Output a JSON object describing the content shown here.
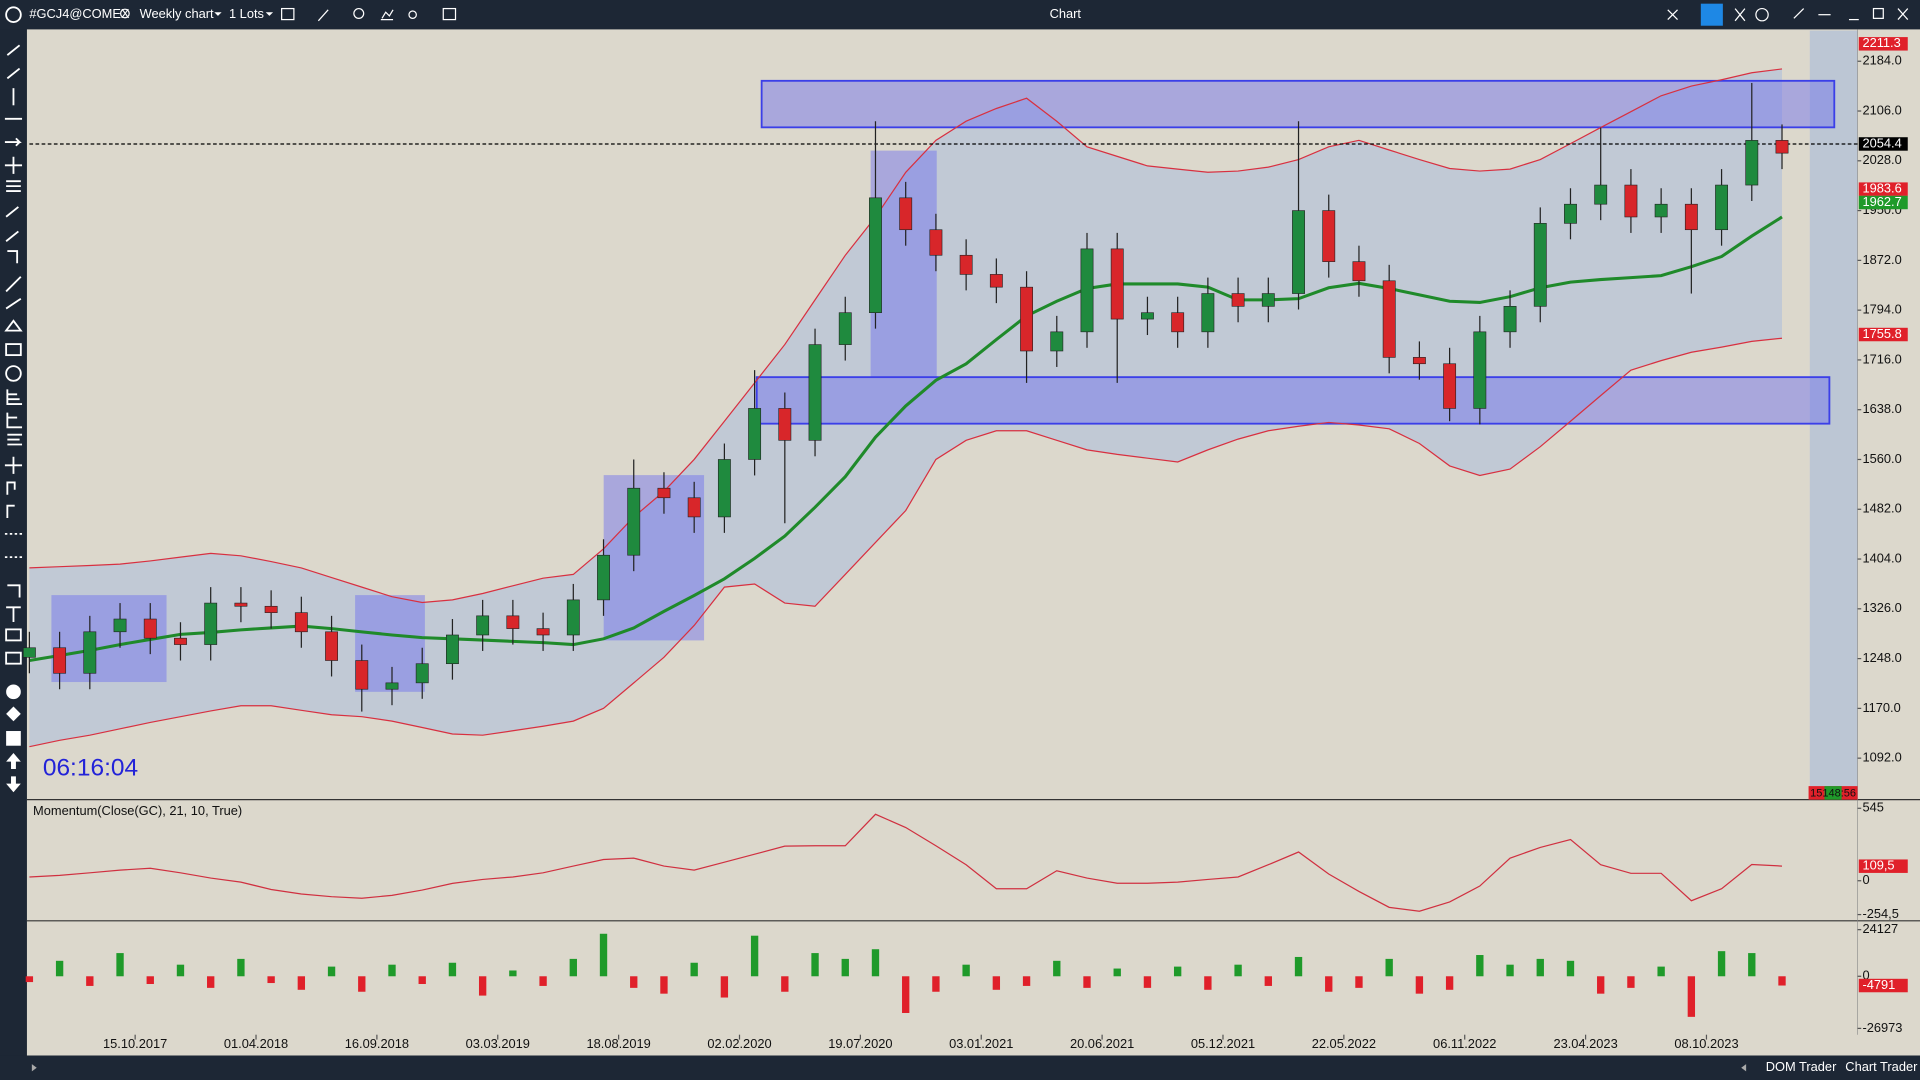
{
  "toolbar": {
    "symbol": "#GCJ4@COMEX",
    "timeframe": "Weekly chart",
    "lots": "1 Lots",
    "window_title": "Chart"
  },
  "footer": {
    "tabs": [
      "DOM Trader",
      "Chart Trader"
    ]
  },
  "chart_data": [
    {
      "type": "candlestick",
      "x": [
        0,
        6,
        12,
        18,
        24,
        30,
        36,
        42,
        48,
        54,
        60,
        66,
        72,
        78,
        84,
        90,
        96,
        102,
        108,
        114,
        120,
        126,
        132,
        138,
        144,
        150,
        156,
        162,
        168,
        174,
        180,
        186,
        192,
        198,
        204,
        210,
        216,
        222,
        228,
        234,
        240,
        246,
        252,
        258,
        264,
        270,
        276,
        282,
        288,
        294,
        300,
        306,
        312,
        318,
        324,
        330,
        336,
        342,
        348
      ],
      "open": [
        1250,
        1265,
        1225,
        1290,
        1310,
        1280,
        1270,
        1335,
        1330,
        1320,
        1290,
        1245,
        1200,
        1210,
        1240,
        1285,
        1315,
        1295,
        1285,
        1340,
        1410,
        1515,
        1500,
        1470,
        1560,
        1640,
        1590,
        1740,
        1790,
        1970,
        1920,
        1880,
        1850,
        1830,
        1730,
        1760,
        1890,
        1780,
        1790,
        1760,
        1820,
        1800,
        1820,
        1950,
        1870,
        1840,
        1720,
        1710,
        1640,
        1760,
        1800,
        1930,
        1960,
        1990,
        1940,
        1960,
        1920,
        1990,
        2060
      ],
      "high": [
        1290,
        1290,
        1315,
        1335,
        1335,
        1305,
        1360,
        1360,
        1355,
        1345,
        1315,
        1270,
        1235,
        1265,
        1310,
        1340,
        1340,
        1320,
        1365,
        1435,
        1560,
        1540,
        1525,
        1585,
        1700,
        1665,
        1765,
        1815,
        2090,
        1995,
        1945,
        1905,
        1875,
        1855,
        1785,
        1915,
        1915,
        1815,
        1815,
        1845,
        1845,
        1845,
        2090,
        1975,
        1895,
        1865,
        1745,
        1735,
        1785,
        1825,
        1955,
        1985,
        2080,
        2015,
        1985,
        1985,
        2015,
        2150,
        2085
      ],
      "low": [
        1225,
        1200,
        1200,
        1265,
        1255,
        1245,
        1245,
        1305,
        1295,
        1265,
        1220,
        1165,
        1175,
        1185,
        1215,
        1260,
        1270,
        1260,
        1260,
        1315,
        1385,
        1475,
        1445,
        1445,
        1535,
        1460,
        1565,
        1715,
        1765,
        1895,
        1855,
        1825,
        1805,
        1680,
        1705,
        1735,
        1680,
        1755,
        1735,
        1735,
        1775,
        1775,
        1795,
        1845,
        1815,
        1695,
        1685,
        1620,
        1615,
        1735,
        1775,
        1905,
        1935,
        1915,
        1915,
        1820,
        1895,
        1965,
        2015
      ],
      "close": [
        1265,
        1225,
        1290,
        1310,
        1280,
        1270,
        1335,
        1330,
        1320,
        1290,
        1245,
        1200,
        1210,
        1240,
        1285,
        1315,
        1295,
        1285,
        1340,
        1410,
        1515,
        1500,
        1470,
        1560,
        1640,
        1590,
        1740,
        1790,
        1970,
        1920,
        1880,
        1850,
        1830,
        1730,
        1760,
        1890,
        1780,
        1790,
        1760,
        1820,
        1800,
        1820,
        1950,
        1870,
        1840,
        1720,
        1710,
        1640,
        1760,
        1800,
        1930,
        1960,
        1990,
        1940,
        1960,
        1920,
        1990,
        2060,
        2040
      ],
      "up_color": "#1f8a3e",
      "down_color": "#d8262a",
      "series": [
        {
          "color": "#1f8a2a",
          "values": [
            1245,
            1253,
            1261,
            1270,
            1278,
            1286,
            1289,
            1293,
            1296,
            1299,
            1295,
            1290,
            1285,
            1281,
            1279,
            1277,
            1275,
            1273,
            1270,
            1279,
            1296,
            1322,
            1347,
            1373,
            1405,
            1440,
            1485,
            1533,
            1595,
            1644,
            1684,
            1710,
            1748,
            1785,
            1808,
            1828,
            1835,
            1835,
            1835,
            1830,
            1810,
            1810,
            1812,
            1829,
            1836,
            1828,
            1818,
            1808,
            1806,
            1815,
            1829,
            1838,
            1842,
            1845,
            1848,
            1862,
            1878,
            1910,
            1940
          ]
        },
        {
          "color": "#d83040",
          "values": [
            1390,
            1392,
            1394,
            1396,
            1401,
            1407,
            1413,
            1409,
            1400,
            1390,
            1375,
            1360,
            1345,
            1336,
            1340,
            1350,
            1362,
            1374,
            1380,
            1420,
            1470,
            1510,
            1560,
            1620,
            1680,
            1740,
            1810,
            1880,
            1940,
            2010,
            2060,
            2090,
            2110,
            2126,
            2090,
            2050,
            2035,
            2020,
            2015,
            2010,
            2012,
            2018,
            2030,
            2050,
            2060,
            2045,
            2030,
            2016,
            2012,
            2015,
            2030,
            2055,
            2080,
            2105,
            2130,
            2145,
            2155,
            2166,
            2172
          ]
        },
        {
          "color": "#d83040",
          "values": [
            1110,
            1120,
            1128,
            1138,
            1148,
            1157,
            1166,
            1174,
            1174,
            1167,
            1160,
            1157,
            1150,
            1140,
            1130,
            1128,
            1135,
            1142,
            1150,
            1170,
            1210,
            1250,
            1300,
            1360,
            1365,
            1335,
            1330,
            1380,
            1430,
            1480,
            1560,
            1590,
            1605,
            1605,
            1590,
            1575,
            1568,
            1562,
            1556,
            1575,
            1592,
            1605,
            1612,
            1618,
            1614,
            1608,
            1585,
            1550,
            1535,
            1545,
            1580,
            1620,
            1660,
            1700,
            1715,
            1728,
            1736,
            1745,
            1750
          ]
        }
      ],
      "xlim": [
        0,
        363
      ],
      "xticks": [
        {
          "value": 21,
          "label": "15.10.2017"
        },
        {
          "value": 45,
          "label": "01.04.2018"
        },
        {
          "value": 69,
          "label": "16.09.2018"
        },
        {
          "value": 93,
          "label": "03.03.2019"
        },
        {
          "value": 117,
          "label": "18.08.2019"
        },
        {
          "value": 141,
          "label": "02.02.2020"
        },
        {
          "value": 165,
          "label": "19.07.2020"
        },
        {
          "value": 189,
          "label": "03.01.2021"
        },
        {
          "value": 213,
          "label": "20.06.2021"
        },
        {
          "value": 237,
          "label": "05.12.2021"
        },
        {
          "value": 261,
          "label": "22.05.2022"
        },
        {
          "value": 285,
          "label": "06.11.2022"
        },
        {
          "value": 309,
          "label": "23.04.2023"
        },
        {
          "value": 333,
          "label": "08.10.2023"
        }
      ],
      "ylim": [
        1029,
        2232
      ],
      "yticks": [
        {
          "value": 2184,
          "label": "2184.0"
        },
        {
          "value": 2106,
          "label": "2106.0"
        },
        {
          "value": 2028,
          "label": "2028.0"
        },
        {
          "value": 1950,
          "label": "1950.0"
        },
        {
          "value": 1872,
          "label": "1872.0"
        },
        {
          "value": 1794,
          "label": "1794.0"
        },
        {
          "value": 1716,
          "label": "1716.0"
        },
        {
          "value": 1638,
          "label": "1638.0"
        },
        {
          "value": 1560,
          "label": "1560.0"
        },
        {
          "value": 1482,
          "label": "1482.0"
        },
        {
          "value": 1404,
          "label": "1404.0"
        },
        {
          "value": 1326,
          "label": "1326.0"
        },
        {
          "value": 1248,
          "label": "1248.0"
        },
        {
          "value": 1170,
          "label": "1170.0"
        },
        {
          "value": 1092,
          "label": "1092.0"
        }
      ],
      "price_tags": [
        {
          "value": 2211.3,
          "color": "#e0202a"
        },
        {
          "value": 2054.4,
          "color": "#000000"
        },
        {
          "value": 1983.6,
          "color": "#e0202a"
        },
        {
          "value": 1962.7,
          "color": "#1f9a2a"
        },
        {
          "value": 1755.8,
          "color": "#e0202a"
        }
      ],
      "reference_line": 2054.4,
      "clock": "06:16:04",
      "countdown": "15148:56"
    },
    {
      "type": "line",
      "title": "Momentum(Close(GC), 21, 10, True)",
      "color": "#d03040",
      "x": [
        0,
        6,
        12,
        18,
        24,
        30,
        36,
        42,
        48,
        54,
        60,
        66,
        72,
        78,
        84,
        90,
        96,
        102,
        108,
        114,
        120,
        126,
        132,
        138,
        144,
        150,
        156,
        162,
        168,
        174,
        180,
        186,
        192,
        198,
        204,
        210,
        216,
        222,
        228,
        234,
        240,
        246,
        252,
        258,
        264,
        270,
        276,
        282,
        288,
        294,
        300,
        306,
        312,
        318,
        324,
        330,
        336,
        342,
        348
      ],
      "values": [
        28,
        40,
        60,
        80,
        94,
        60,
        20,
        -10,
        -66,
        -100,
        -120,
        -132,
        -110,
        -70,
        -20,
        10,
        28,
        60,
        110,
        160,
        170,
        110,
        80,
        140,
        200,
        260,
        263,
        263,
        500,
        400,
        263,
        120,
        -60,
        -60,
        75,
        20,
        -19,
        -19,
        -10,
        10,
        28,
        120,
        216,
        50,
        -80,
        -200,
        -230,
        -160,
        -40,
        170,
        250,
        310,
        120,
        56,
        56,
        -150,
        -60,
        122,
        110
      ],
      "ylim": [
        -283,
        592
      ],
      "yticks": [
        545,
        0,
        {
          "value": -254.5,
          "label": "-254,5"
        }
      ],
      "price_tags": [
        {
          "value": 109.5,
          "label": "109,5",
          "color": "#e0202a"
        }
      ]
    },
    {
      "type": "bar",
      "pos_color": "#1f9a2a",
      "neg_color": "#e0202a",
      "x": [
        0,
        6,
        12,
        18,
        24,
        30,
        36,
        42,
        48,
        54,
        60,
        66,
        72,
        78,
        84,
        90,
        96,
        102,
        108,
        114,
        120,
        126,
        132,
        138,
        144,
        150,
        156,
        162,
        168,
        174,
        180,
        186,
        192,
        198,
        204,
        210,
        216,
        222,
        228,
        234,
        240,
        246,
        252,
        258,
        264,
        270,
        276,
        282,
        288,
        294,
        300,
        306,
        312,
        318,
        324,
        330,
        336,
        342,
        348
      ],
      "values": [
        -3000,
        8000,
        -5000,
        12000,
        -4000,
        6000,
        -6000,
        9000,
        -3500,
        -7000,
        5000,
        -8000,
        6000,
        -4000,
        7000,
        -10000,
        3000,
        -5000,
        9000,
        22000,
        -6000,
        -9000,
        7000,
        -11000,
        21000,
        -8000,
        12000,
        9000,
        14000,
        -19000,
        -8000,
        6000,
        -7000,
        -5000,
        8000,
        -6000,
        4000,
        -6000,
        5000,
        -7000,
        6000,
        -5000,
        10000,
        -8000,
        -6000,
        9000,
        -9000,
        -7000,
        11000,
        6000,
        9000,
        8000,
        -9000,
        -6000,
        5000,
        -21000,
        13000,
        12000,
        -4791
      ],
      "ylim": [
        -30233,
        26800
      ],
      "yticks": [
        24127,
        0,
        -26973
      ],
      "price_tags": [
        {
          "value": -4791,
          "color": "#e0202a"
        }
      ]
    }
  ]
}
